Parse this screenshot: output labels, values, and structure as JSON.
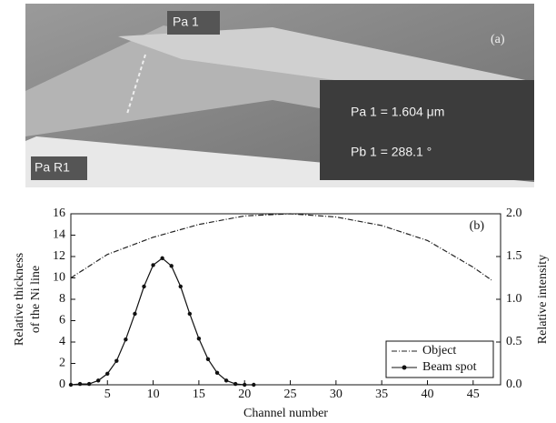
{
  "image": {
    "panel_label": "(a)",
    "marker_labels": [
      "Pa 1",
      "Pa R1"
    ],
    "measurements": [
      "Pa 1 = 1.604 μm",
      "Pb 1 = 288.1 °"
    ]
  },
  "chart_data": {
    "type": "line",
    "annotation": "(b)",
    "xlabel": "Channel number",
    "ylabel": [
      "Relative thickness",
      "of the Ni line"
    ],
    "y2label": "Relative intensity",
    "xlim": [
      1,
      48
    ],
    "xticks": [
      5,
      10,
      15,
      20,
      25,
      30,
      35,
      40,
      45
    ],
    "ylim": [
      0,
      16
    ],
    "yticks": [
      0,
      2,
      4,
      6,
      8,
      10,
      12,
      14,
      16
    ],
    "y2lim": [
      0,
      2
    ],
    "y2ticks": [
      {
        "value": 0,
        "label": "0.0"
      },
      0.5,
      {
        "value": 1,
        "label": "1.0"
      },
      1.5,
      {
        "value": 2,
        "label": "2.0"
      }
    ],
    "grid": false,
    "legend": "lower right",
    "series": [
      {
        "name": "Object",
        "color": "#222222",
        "style": "dashdot",
        "x": [
          1,
          5,
          10,
          15,
          20,
          25,
          30,
          35,
          40,
          45,
          47
        ],
        "values": [
          10,
          12.2,
          13.8,
          15,
          15.8,
          16,
          15.7,
          14.9,
          13.5,
          11,
          9.8
        ]
      },
      {
        "name": "Beam spot",
        "color": "#111111",
        "style": "solid-marker",
        "axis": "y2",
        "x": [
          1,
          2,
          3,
          4,
          5,
          6,
          7,
          8,
          9,
          10,
          11,
          12,
          13,
          14,
          15,
          16,
          17,
          18,
          19,
          20,
          21
        ],
        "values": [
          0,
          0.01,
          0.01,
          0.05,
          0.13,
          0.28,
          0.53,
          0.83,
          1.15,
          1.4,
          1.48,
          1.39,
          1.15,
          0.83,
          0.54,
          0.3,
          0.14,
          0.05,
          0.01,
          0,
          0
        ]
      }
    ]
  }
}
